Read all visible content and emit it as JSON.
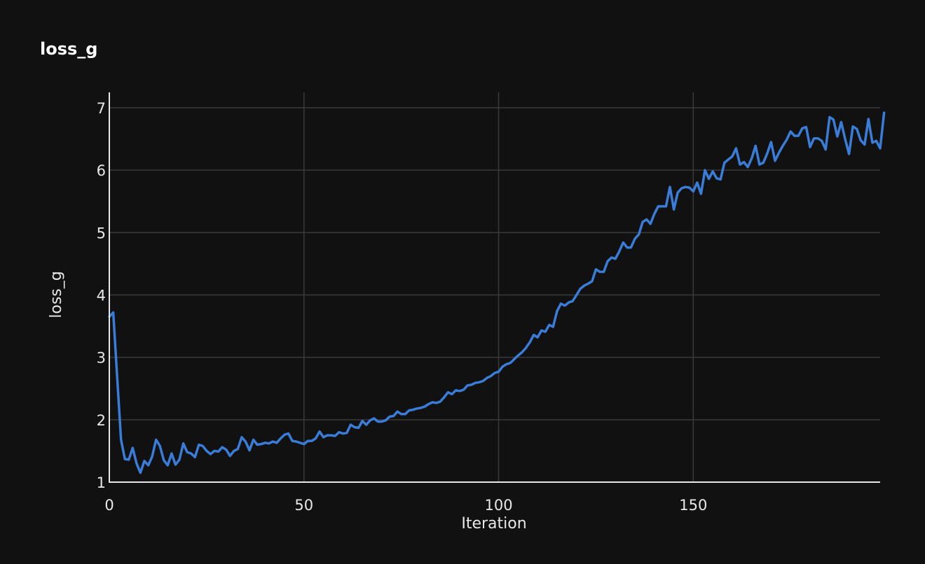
{
  "colors": {
    "background": "#111111",
    "grid": "#3a3a3a",
    "axis_line": "#e8e8e8",
    "series": "#3a7dd8"
  },
  "chart_data": {
    "type": "line",
    "title": "loss_g",
    "xlabel": "Iteration",
    "ylabel": "loss_g",
    "xlim": [
      0,
      198
    ],
    "ylim": [
      1,
      7.15
    ],
    "x_ticks": [
      0,
      50,
      100,
      150
    ],
    "y_ticks": [
      1,
      2,
      3,
      4,
      5,
      6,
      7
    ],
    "grid": true,
    "series": [
      {
        "x_start": 0,
        "x_step": 1,
        "values": [
          3.65,
          3.72,
          2.7,
          1.68,
          1.37,
          1.36,
          1.55,
          1.3,
          1.15,
          1.34,
          1.27,
          1.41,
          1.68,
          1.58,
          1.35,
          1.27,
          1.46,
          1.28,
          1.36,
          1.62,
          1.48,
          1.46,
          1.4,
          1.6,
          1.58,
          1.5,
          1.45,
          1.5,
          1.49,
          1.56,
          1.52,
          1.42,
          1.5,
          1.53,
          1.72,
          1.65,
          1.51,
          1.68,
          1.6,
          1.61,
          1.63,
          1.62,
          1.65,
          1.63,
          1.7,
          1.76,
          1.78,
          1.66,
          1.65,
          1.63,
          1.61,
          1.66,
          1.66,
          1.7,
          1.81,
          1.72,
          1.75,
          1.75,
          1.74,
          1.8,
          1.78,
          1.79,
          1.92,
          1.88,
          1.87,
          1.98,
          1.92,
          1.99,
          2.02,
          1.97,
          1.97,
          1.99,
          2.05,
          2.06,
          2.13,
          2.09,
          2.09,
          2.15,
          2.16,
          2.18,
          2.19,
          2.21,
          2.25,
          2.28,
          2.27,
          2.29,
          2.36,
          2.44,
          2.41,
          2.47,
          2.46,
          2.48,
          2.55,
          2.56,
          2.59,
          2.6,
          2.62,
          2.67,
          2.7,
          2.75,
          2.77,
          2.85,
          2.89,
          2.91,
          2.97,
          3.03,
          3.08,
          3.15,
          3.24,
          3.36,
          3.32,
          3.43,
          3.41,
          3.52,
          3.49,
          3.74,
          3.86,
          3.83,
          3.88,
          3.9,
          4.0,
          4.1,
          4.15,
          4.18,
          4.22,
          4.41,
          4.37,
          4.37,
          4.54,
          4.6,
          4.58,
          4.7,
          4.84,
          4.76,
          4.76,
          4.9,
          4.97,
          5.17,
          5.21,
          5.14,
          5.3,
          5.42,
          5.42,
          5.42,
          5.73,
          5.37,
          5.64,
          5.71,
          5.73,
          5.72,
          5.66,
          5.8,
          5.62,
          6.0,
          5.86,
          5.98,
          5.87,
          5.85,
          6.12,
          6.17,
          6.22,
          6.35,
          6.09,
          6.13,
          6.05,
          6.19,
          6.39,
          6.09,
          6.12,
          6.27,
          6.45,
          6.15,
          6.28,
          6.39,
          6.49,
          6.62,
          6.55,
          6.55,
          6.67,
          6.69,
          6.37,
          6.51,
          6.51,
          6.47,
          6.33,
          6.85,
          6.81,
          6.54,
          6.77,
          6.5,
          6.26,
          6.7,
          6.66,
          6.48,
          6.41,
          6.82,
          6.44,
          6.47,
          6.35,
          6.92
        ]
      }
    ]
  }
}
